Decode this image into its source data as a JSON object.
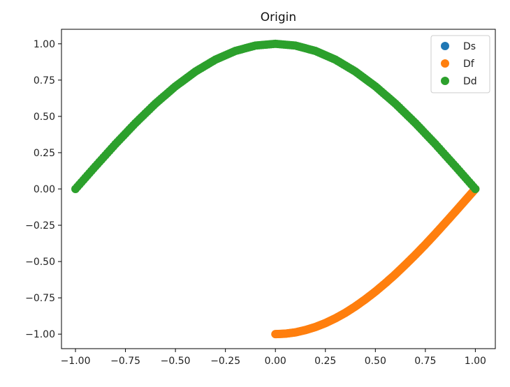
{
  "chart_data": {
    "type": "scatter",
    "title": "Origin",
    "xlabel": "",
    "ylabel": "",
    "xlim": [
      -1.07,
      1.1
    ],
    "ylim": [
      -1.1,
      1.1
    ],
    "xticks": [
      -1.0,
      -0.75,
      -0.5,
      -0.25,
      0.0,
      0.25,
      0.5,
      0.75,
      1.0
    ],
    "xtick_labels": [
      "−1.00",
      "−0.75",
      "−0.50",
      "−0.25",
      "0.00",
      "0.25",
      "0.50",
      "0.75",
      "1.00"
    ],
    "yticks": [
      -1.0,
      -0.75,
      -0.5,
      -0.25,
      0.0,
      0.25,
      0.5,
      0.75,
      1.0
    ],
    "ytick_labels": [
      "−1.00",
      "−0.75",
      "−0.50",
      "−0.25",
      "0.00",
      "0.25",
      "0.50",
      "0.75",
      "1.00"
    ],
    "grid": false,
    "legend_position": "top-right",
    "series": [
      {
        "name": "Ds",
        "color": "#1f77b4",
        "x": [],
        "y": []
      },
      {
        "name": "Df",
        "color": "#ff7f0e",
        "x": [
          0.0,
          0.05,
          0.1,
          0.15,
          0.2,
          0.25,
          0.3,
          0.35,
          0.4,
          0.45,
          0.5,
          0.55,
          0.6,
          0.65,
          0.7,
          0.75,
          0.8,
          0.85,
          0.9,
          0.95,
          1.0
        ],
        "y": [
          -1.0,
          -0.997,
          -0.988,
          -0.972,
          -0.951,
          -0.924,
          -0.891,
          -0.853,
          -0.809,
          -0.76,
          -0.707,
          -0.649,
          -0.588,
          -0.522,
          -0.454,
          -0.383,
          -0.309,
          -0.233,
          -0.156,
          -0.078,
          0.0
        ]
      },
      {
        "name": "Dd",
        "color": "#2ca02c",
        "x": [
          -1.0,
          -0.9,
          -0.8,
          -0.7,
          -0.6,
          -0.5,
          -0.4,
          -0.3,
          -0.2,
          -0.1,
          0.0,
          0.1,
          0.2,
          0.3,
          0.4,
          0.5,
          0.6,
          0.7,
          0.8,
          0.9,
          1.0
        ],
        "y": [
          0.0,
          0.156,
          0.309,
          0.454,
          0.588,
          0.707,
          0.809,
          0.891,
          0.951,
          0.988,
          1.0,
          0.988,
          0.951,
          0.891,
          0.809,
          0.707,
          0.588,
          0.454,
          0.309,
          0.156,
          0.0
        ]
      }
    ]
  }
}
